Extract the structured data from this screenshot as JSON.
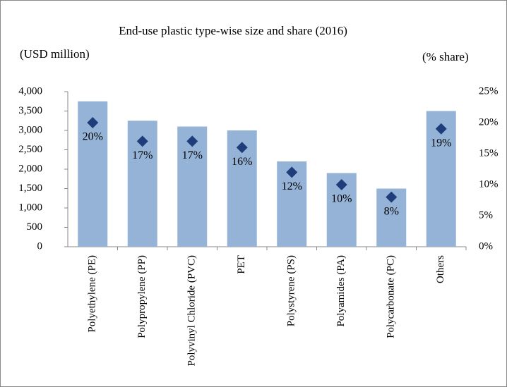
{
  "chart_data": {
    "type": "bar",
    "title": "End-use plastic type-wise size and share (2016)",
    "y_label": "(USD million)",
    "y2_label": "(% share)",
    "categories": [
      "Polyethylene (PE)",
      "Polypropylene (PP)",
      "Polyvinyl Chloride (PVC)",
      "PET",
      "Polystyrene (PS)",
      "Polyamides (PA)",
      "Polycarbonate (PC)",
      "Others"
    ],
    "series": [
      {
        "type": "bar",
        "color": "#95b3d7",
        "values": [
          3750,
          3250,
          3100,
          3000,
          2200,
          1900,
          1500,
          3500
        ]
      },
      {
        "type": "scatter",
        "axis": "y2",
        "color": "#1f3d7a",
        "values": [
          20,
          17,
          17,
          16,
          12,
          10,
          8,
          19
        ],
        "value_labels": [
          "20%",
          "17%",
          "17%",
          "16%",
          "12%",
          "10%",
          "8%",
          "19%"
        ]
      }
    ],
    "ylim": [
      0,
      4000
    ],
    "yticks": [
      0,
      500,
      {
        "value": 1000,
        "label": "1,000"
      },
      {
        "value": 1500,
        "label": "1,500"
      },
      {
        "value": 2000,
        "label": "2,000"
      },
      {
        "value": 2500,
        "label": "2,500"
      },
      {
        "value": 3000,
        "label": "3,000"
      },
      {
        "value": 3500,
        "label": "3,500"
      },
      {
        "value": 4000,
        "label": "4,000"
      }
    ],
    "y2lim": [
      0,
      25
    ],
    "y2ticks": [
      {
        "value": 0,
        "label": "0%"
      },
      {
        "value": 5,
        "label": "5%"
      },
      {
        "value": 10,
        "label": "10%"
      },
      {
        "value": 15,
        "label": "15%"
      },
      {
        "value": 20,
        "label": "20%"
      },
      {
        "value": 25,
        "label": "25%"
      }
    ],
    "grid": false
  }
}
